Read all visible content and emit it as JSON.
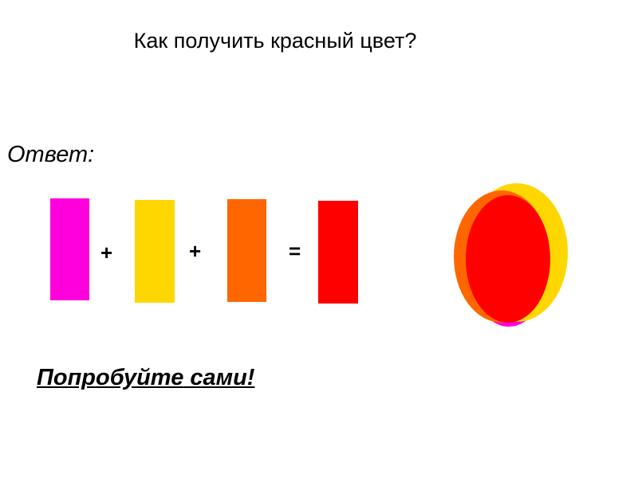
{
  "title": "Как получить красный цвет?",
  "answer_label": "Ответ:",
  "equation": {
    "operators": [
      "+",
      "+",
      "="
    ],
    "colors": {
      "magenta": "#FF00DD",
      "yellow": "#FFD700",
      "orange": "#FF6600",
      "red": "#FF0000"
    }
  },
  "overlap_colors": [
    "#FF00DD",
    "#FFD700",
    "#FF6600",
    "#FF0000"
  ],
  "call_to_action": "Попробуйте сами!"
}
